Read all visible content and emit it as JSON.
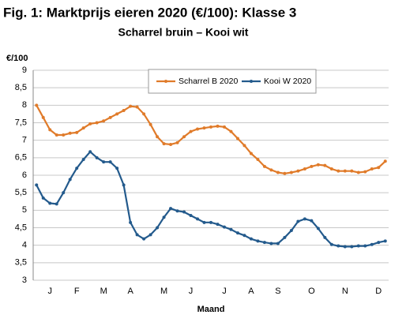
{
  "chart_data": {
    "type": "line",
    "title": "Fig. 1: Marktprijs eieren 2020 (€/100): Klasse 3",
    "subtitle": "Scharrel bruin – Kooi wit",
    "y_label": "€/100",
    "x_label": "Maand",
    "categories": [
      null,
      null,
      "J",
      null,
      null,
      null,
      "F",
      null,
      null,
      null,
      "M",
      null,
      null,
      null,
      "A",
      null,
      null,
      null,
      null,
      "M",
      null,
      null,
      null,
      "J",
      null,
      null,
      null,
      null,
      "J",
      null,
      null,
      null,
      "A",
      null,
      null,
      null,
      "S",
      null,
      null,
      null,
      null,
      "O",
      null,
      null,
      null,
      null,
      "N",
      null,
      null,
      null,
      null,
      "D",
      null
    ],
    "series": [
      {
        "name": "Scharrel B 2020",
        "color": "#e07b2a",
        "values": [
          8.0,
          7.65,
          7.3,
          7.15,
          7.15,
          7.2,
          7.22,
          7.35,
          7.47,
          7.5,
          7.55,
          7.65,
          7.75,
          7.85,
          7.97,
          7.95,
          7.75,
          7.45,
          7.1,
          6.9,
          6.88,
          6.93,
          7.1,
          7.25,
          7.32,
          7.35,
          7.38,
          7.4,
          7.38,
          7.25,
          7.05,
          6.85,
          6.62,
          6.45,
          6.25,
          6.15,
          6.08,
          6.05,
          6.08,
          6.12,
          6.18,
          6.25,
          6.3,
          6.28,
          6.18,
          6.12,
          6.12,
          6.12,
          6.08,
          6.1,
          6.18,
          6.22,
          6.4
        ]
      },
      {
        "name": "Kooi W 2020",
        "color": "#235a8c",
        "values": [
          5.72,
          5.35,
          5.2,
          5.18,
          5.5,
          5.88,
          6.2,
          6.45,
          6.67,
          6.5,
          6.38,
          6.38,
          6.2,
          5.72,
          4.65,
          4.3,
          4.18,
          4.3,
          4.5,
          4.8,
          5.05,
          4.98,
          4.95,
          4.85,
          4.75,
          4.65,
          4.65,
          4.6,
          4.52,
          4.45,
          4.35,
          4.28,
          4.18,
          4.12,
          4.08,
          4.05,
          4.05,
          4.22,
          4.42,
          4.68,
          4.75,
          4.7,
          4.48,
          4.22,
          4.02,
          3.98,
          3.96,
          3.96,
          3.98,
          3.98,
          4.02,
          4.08,
          4.12
        ]
      }
    ],
    "ylim": [
      3,
      9
    ],
    "yticks": [
      3,
      {
        "value": 3.5,
        "label": "3,5"
      },
      4,
      {
        "value": 4.5,
        "label": "4,5"
      },
      5,
      {
        "value": 5.5,
        "label": "5,5"
      },
      6,
      {
        "value": 6.5,
        "label": "6,5"
      },
      7,
      {
        "value": 7.5,
        "label": "7,5"
      },
      8,
      {
        "value": 8.5,
        "label": "8,5"
      },
      9
    ],
    "grid": true
  }
}
